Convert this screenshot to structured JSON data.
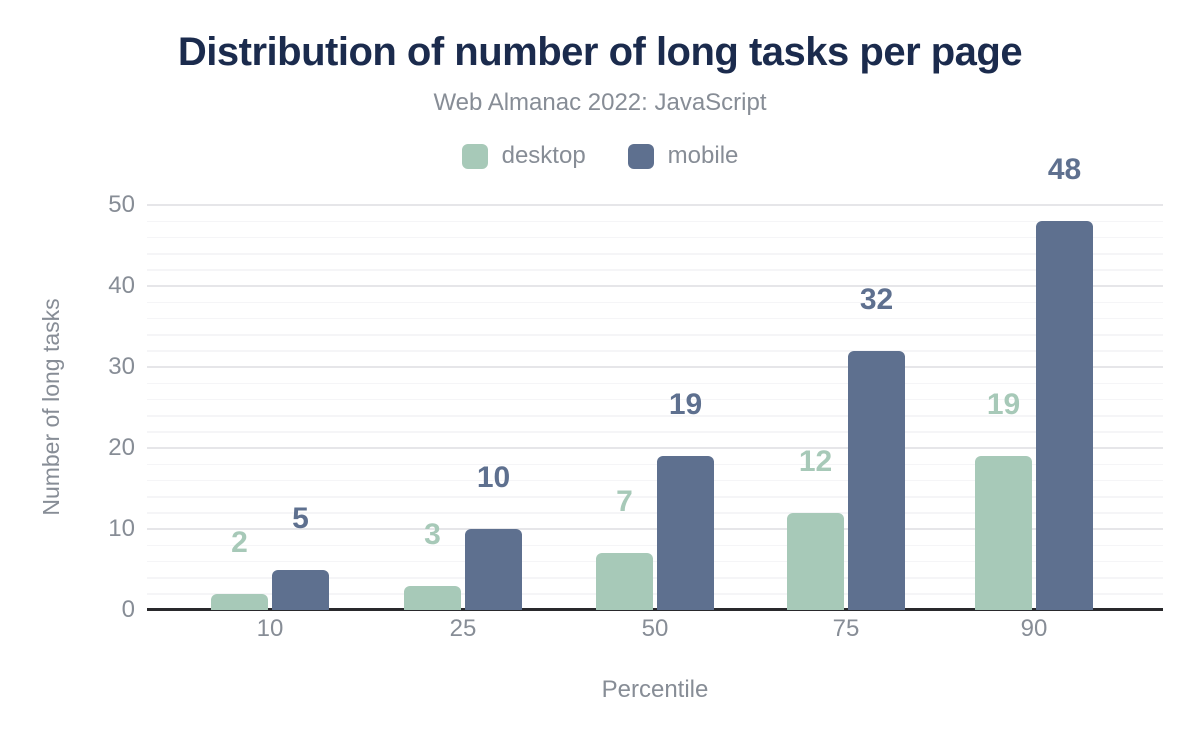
{
  "title": "Distribution of number of long tasks per page",
  "subtitle": "Web Almanac 2022: JavaScript",
  "colors": {
    "title": "#1b2b4d",
    "muted_text": "#878d96",
    "desktop": "#a7c9b8",
    "mobile": "#5e708f",
    "axis_line": "#29292c",
    "grid_major": "#e6e6e9",
    "grid_minor": "#f5f5f7"
  },
  "legend": [
    {
      "label": "desktop",
      "color": "#a7c9b8"
    },
    {
      "label": "mobile",
      "color": "#5e708f"
    }
  ],
  "chart_data": {
    "type": "bar",
    "title": "Distribution of number of long tasks per page",
    "subtitle": "Web Almanac 2022: JavaScript",
    "categories": [
      "10",
      "25",
      "50",
      "75",
      "90"
    ],
    "series": [
      {
        "name": "desktop",
        "color": "#a7c9b8",
        "values": [
          2,
          3,
          7,
          12,
          19
        ]
      },
      {
        "name": "mobile",
        "color": "#5e708f",
        "values": [
          5,
          10,
          19,
          32,
          48
        ]
      }
    ],
    "xlabel": "Percentile",
    "ylabel": "Number of long tasks",
    "ylim": [
      0,
      50
    ],
    "yticks": [
      0,
      10,
      20,
      30,
      40,
      50
    ],
    "minor_grid_step": 2,
    "grid": "horizontal major+minor",
    "legend_position": "top center",
    "data_labels": "above bars, colored per series"
  }
}
